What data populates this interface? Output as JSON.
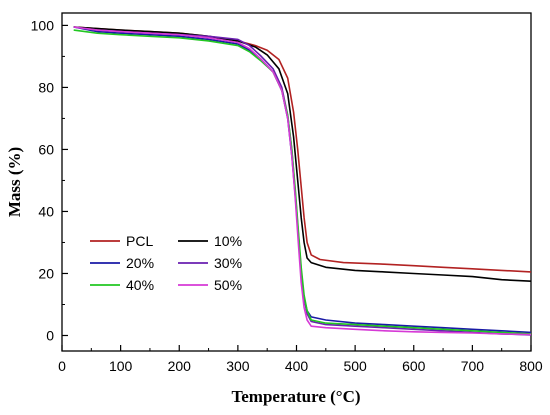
{
  "chart_data": {
    "type": "line",
    "title": "",
    "xlabel": "Temperature (°C)",
    "ylabel": "Mass (%)",
    "xlim": [
      0,
      800
    ],
    "ylim": [
      -5,
      104
    ],
    "xticks": [
      0,
      100,
      200,
      300,
      400,
      500,
      600,
      700,
      800
    ],
    "yticks": [
      0,
      20,
      40,
      60,
      80,
      100
    ],
    "grid": false,
    "legend_placement": "lower-left",
    "series": [
      {
        "name": "PCL",
        "color": "#b22222",
        "points": [
          [
            20,
            99.5
          ],
          [
            60,
            99
          ],
          [
            100,
            98.5
          ],
          [
            150,
            98
          ],
          [
            200,
            97.5
          ],
          [
            250,
            96.5
          ],
          [
            300,
            95
          ],
          [
            330,
            93.5
          ],
          [
            350,
            92
          ],
          [
            370,
            89
          ],
          [
            385,
            83
          ],
          [
            395,
            72
          ],
          [
            402,
            60
          ],
          [
            408,
            48
          ],
          [
            413,
            38
          ],
          [
            418,
            30
          ],
          [
            425,
            26
          ],
          [
            440,
            24.5
          ],
          [
            480,
            23.5
          ],
          [
            550,
            23
          ],
          [
            600,
            22.5
          ],
          [
            650,
            22
          ],
          [
            700,
            21.5
          ],
          [
            750,
            21
          ],
          [
            800,
            20.5
          ]
        ]
      },
      {
        "name": "10%",
        "color": "#000000",
        "points": [
          [
            20,
            99.5
          ],
          [
            60,
            99
          ],
          [
            100,
            98.5
          ],
          [
            150,
            98
          ],
          [
            200,
            97.5
          ],
          [
            250,
            96.5
          ],
          [
            300,
            95
          ],
          [
            330,
            93
          ],
          [
            350,
            90.5
          ],
          [
            370,
            86
          ],
          [
            385,
            78
          ],
          [
            395,
            64
          ],
          [
            402,
            50
          ],
          [
            408,
            38
          ],
          [
            413,
            30
          ],
          [
            418,
            25
          ],
          [
            425,
            23.5
          ],
          [
            450,
            22
          ],
          [
            500,
            21
          ],
          [
            550,
            20.5
          ],
          [
            600,
            20
          ],
          [
            650,
            19.5
          ],
          [
            700,
            19
          ],
          [
            750,
            18
          ],
          [
            800,
            17.5
          ]
        ]
      },
      {
        "name": "20%",
        "color": "#1a1aa6",
        "points": [
          [
            20,
            99.5
          ],
          [
            60,
            98
          ],
          [
            100,
            97.5
          ],
          [
            150,
            97
          ],
          [
            200,
            96.5
          ],
          [
            250,
            95.5
          ],
          [
            300,
            94
          ],
          [
            320,
            92
          ],
          [
            340,
            89
          ],
          [
            360,
            85
          ],
          [
            375,
            79
          ],
          [
            385,
            70
          ],
          [
            392,
            58
          ],
          [
            398,
            45
          ],
          [
            403,
            32
          ],
          [
            408,
            20
          ],
          [
            413,
            12
          ],
          [
            418,
            8
          ],
          [
            425,
            6
          ],
          [
            450,
            5
          ],
          [
            500,
            4
          ],
          [
            550,
            3.5
          ],
          [
            600,
            3
          ],
          [
            650,
            2.5
          ],
          [
            700,
            2
          ],
          [
            750,
            1.5
          ],
          [
            800,
            1
          ]
        ]
      },
      {
        "name": "30%",
        "color": "#6a1fb0",
        "points": [
          [
            20,
            99.5
          ],
          [
            60,
            98.5
          ],
          [
            100,
            98
          ],
          [
            150,
            97.5
          ],
          [
            200,
            97
          ],
          [
            250,
            96.5
          ],
          [
            300,
            95.5
          ],
          [
            320,
            93.5
          ],
          [
            340,
            90
          ],
          [
            360,
            86
          ],
          [
            375,
            80
          ],
          [
            385,
            71
          ],
          [
            392,
            60
          ],
          [
            398,
            46
          ],
          [
            403,
            33
          ],
          [
            408,
            21
          ],
          [
            413,
            12
          ],
          [
            418,
            7
          ],
          [
            425,
            4.5
          ],
          [
            450,
            3.5
          ],
          [
            500,
            3
          ],
          [
            550,
            2.5
          ],
          [
            600,
            2
          ],
          [
            650,
            1.5
          ],
          [
            700,
            1
          ],
          [
            750,
            0.5
          ],
          [
            800,
            0.2
          ]
        ]
      },
      {
        "name": "40%",
        "color": "#22c722",
        "points": [
          [
            20,
            98.5
          ],
          [
            60,
            97.5
          ],
          [
            100,
            97
          ],
          [
            150,
            96.5
          ],
          [
            200,
            96
          ],
          [
            250,
            95
          ],
          [
            300,
            93.5
          ],
          [
            320,
            91.5
          ],
          [
            340,
            88.5
          ],
          [
            360,
            85
          ],
          [
            375,
            79
          ],
          [
            385,
            71
          ],
          [
            392,
            60
          ],
          [
            398,
            47
          ],
          [
            403,
            34
          ],
          [
            408,
            22
          ],
          [
            413,
            13
          ],
          [
            418,
            8
          ],
          [
            425,
            5
          ],
          [
            450,
            4
          ],
          [
            500,
            3.5
          ],
          [
            550,
            3
          ],
          [
            600,
            2.5
          ],
          [
            650,
            2
          ],
          [
            700,
            1.5
          ],
          [
            750,
            1
          ],
          [
            800,
            0.5
          ]
        ]
      },
      {
        "name": "50%",
        "color": "#d63ad6",
        "points": [
          [
            20,
            99.5
          ],
          [
            60,
            98.5
          ],
          [
            100,
            98
          ],
          [
            150,
            97.5
          ],
          [
            200,
            97
          ],
          [
            250,
            96
          ],
          [
            300,
            94.5
          ],
          [
            320,
            92.5
          ],
          [
            340,
            89
          ],
          [
            360,
            85
          ],
          [
            375,
            79
          ],
          [
            385,
            70
          ],
          [
            392,
            58
          ],
          [
            398,
            44
          ],
          [
            403,
            30
          ],
          [
            408,
            17
          ],
          [
            413,
            9
          ],
          [
            418,
            5
          ],
          [
            425,
            3
          ],
          [
            450,
            2.5
          ],
          [
            500,
            2
          ],
          [
            550,
            1.5
          ],
          [
            600,
            1.2
          ],
          [
            650,
            1
          ],
          [
            700,
            0.8
          ],
          [
            750,
            0.5
          ],
          [
            800,
            0.3
          ]
        ]
      }
    ]
  }
}
